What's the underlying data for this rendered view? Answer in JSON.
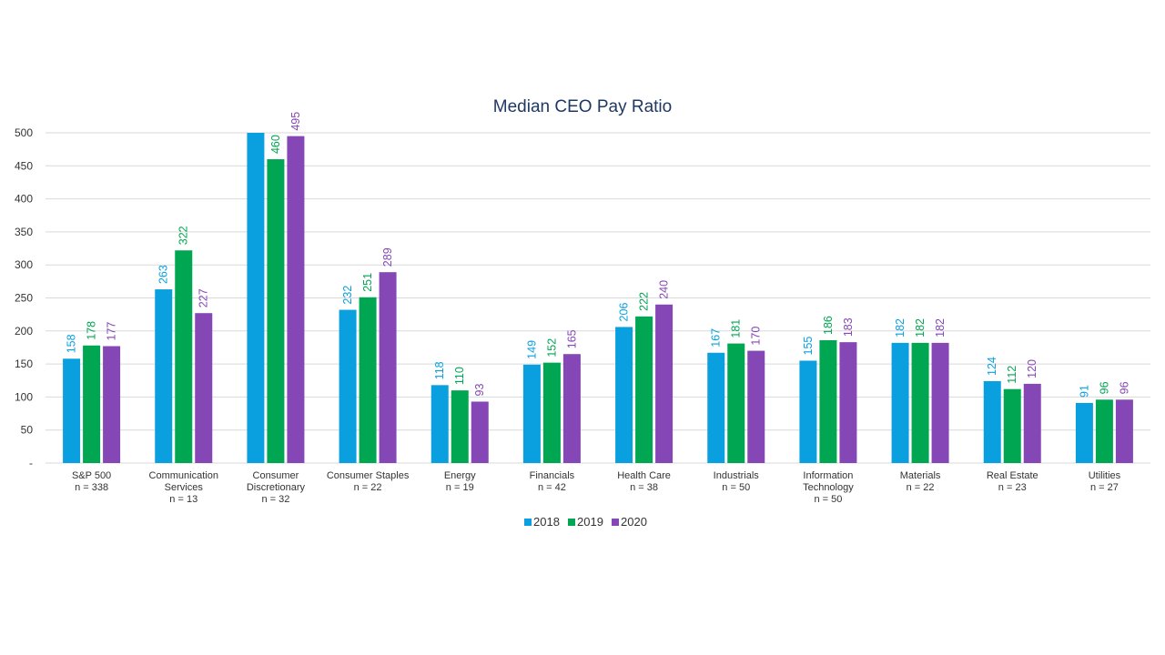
{
  "chart_data": {
    "type": "bar",
    "title": "Median CEO Pay Ratio",
    "xlabel": "",
    "ylabel": "",
    "ylim": [
      0,
      500
    ],
    "yticks": [
      0,
      50,
      100,
      150,
      200,
      250,
      300,
      350,
      400,
      450,
      500
    ],
    "ytick_labels": [
      "-",
      "50",
      "100",
      "150",
      "200",
      "250",
      "300",
      "350",
      "400",
      "450",
      "500"
    ],
    "grid": true,
    "legend_position": "bottom",
    "categories": [
      [
        "S&P 500",
        "n = 338"
      ],
      [
        "Communication",
        "Services",
        "n = 13"
      ],
      [
        "Consumer",
        "Discretionary",
        "n = 32"
      ],
      [
        "Consumer Staples",
        "n = 22"
      ],
      [
        "Energy",
        "n = 19"
      ],
      [
        "Financials",
        "n = 42"
      ],
      [
        "Health Care",
        "n = 38"
      ],
      [
        "Industrials",
        "n = 50"
      ],
      [
        "Information",
        "Technology",
        "n = 50"
      ],
      [
        "Materials",
        "n = 22"
      ],
      [
        "Real Estate",
        "n = 23"
      ],
      [
        "Utilities",
        "n = 27"
      ]
    ],
    "series": [
      {
        "name": "2018",
        "color": "#0aa0e0",
        "values": [
          158,
          263,
          500,
          232,
          118,
          149,
          206,
          167,
          155,
          182,
          124,
          91
        ],
        "labels": [
          "158",
          "263",
          "",
          "232",
          "118",
          "149",
          "206",
          "167",
          "155",
          "182",
          "124",
          "91"
        ]
      },
      {
        "name": "2019",
        "color": "#00a651",
        "values": [
          178,
          322,
          460,
          251,
          110,
          152,
          222,
          181,
          186,
          182,
          112,
          96
        ],
        "labels": [
          "178",
          "322",
          "460",
          "251",
          "110",
          "152",
          "222",
          "181",
          "186",
          "182",
          "112",
          "96"
        ]
      },
      {
        "name": "2020",
        "color": "#8547b5",
        "values": [
          177,
          227,
          495,
          289,
          93,
          165,
          240,
          170,
          183,
          182,
          120,
          96
        ],
        "labels": [
          "177",
          "227",
          "495",
          "289",
          "93",
          "165",
          "240",
          "170",
          "183",
          "182",
          "120",
          "96"
        ]
      }
    ]
  }
}
